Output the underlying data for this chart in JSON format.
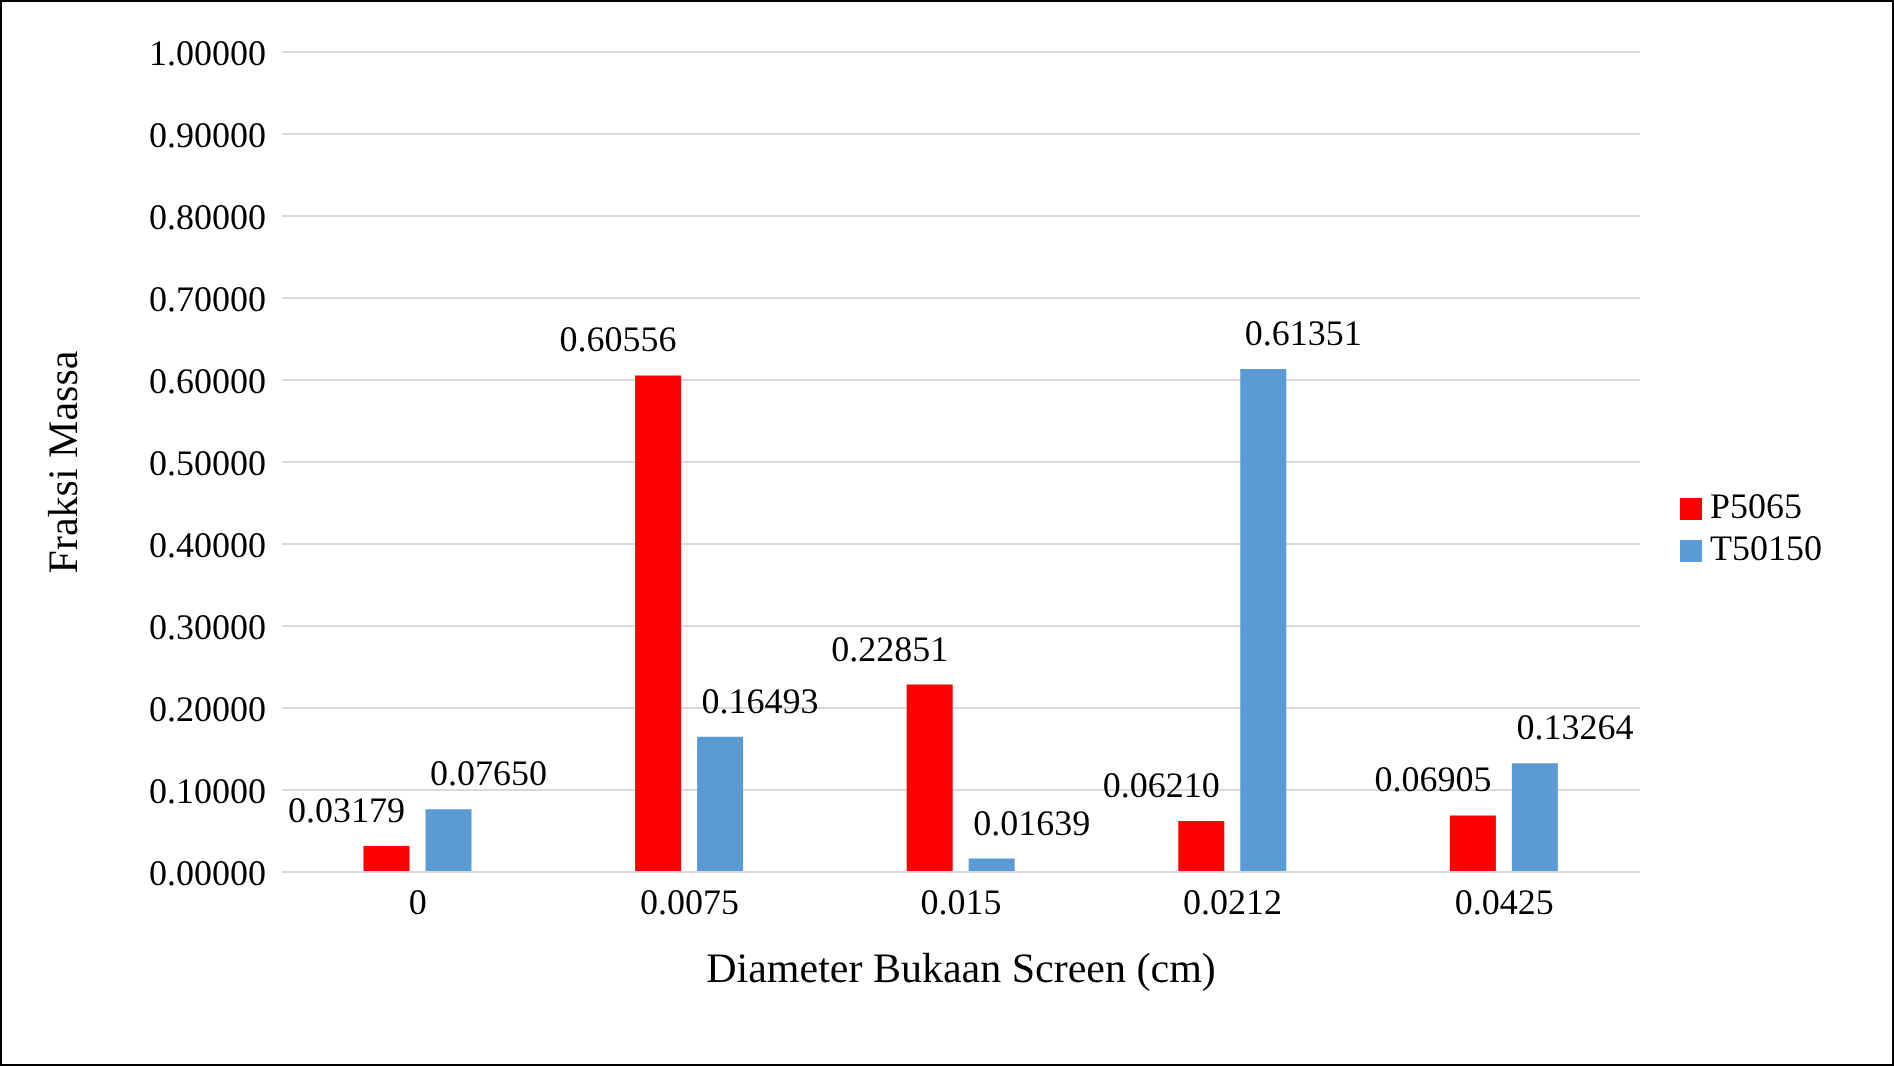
{
  "chart_data": {
    "type": "bar",
    "xlabel": "Diameter Bukaan Screen (cm)",
    "ylabel": "Fraksi Massa",
    "categories": [
      "0",
      "0.0075",
      "0.015",
      "0.0212",
      "0.0425"
    ],
    "series": [
      {
        "name": "P5065",
        "color": "#ff0000",
        "values": [
          0.03179,
          0.60556,
          0.22851,
          0.0621,
          0.06905
        ],
        "value_labels": [
          "0.03179",
          "0.60556",
          "0.22851",
          "0.06210",
          "0.06905"
        ]
      },
      {
        "name": "T50150",
        "color": "#5b9bd5",
        "values": [
          0.0765,
          0.16493,
          0.01639,
          0.61351,
          0.13264
        ],
        "value_labels": [
          "0.07650",
          "0.16493",
          "0.01639",
          "0.61351",
          "0.13264"
        ]
      }
    ],
    "ylim": [
      0,
      1
    ],
    "yticks": [
      {
        "value": 0,
        "label": "0.00000"
      },
      {
        "value": 0.1,
        "label": "0.10000"
      },
      {
        "value": 0.2,
        "label": "0.20000"
      },
      {
        "value": 0.3,
        "label": "0.30000"
      },
      {
        "value": 0.4,
        "label": "0.40000"
      },
      {
        "value": 0.5,
        "label": "0.50000"
      },
      {
        "value": 0.6,
        "label": "0.60000"
      },
      {
        "value": 0.7,
        "label": "0.70000"
      },
      {
        "value": 0.8,
        "label": "0.80000"
      },
      {
        "value": 0.9,
        "label": "0.90000"
      },
      {
        "value": 1,
        "label": "1.00000"
      }
    ],
    "grid": "y",
    "legend": "right"
  }
}
